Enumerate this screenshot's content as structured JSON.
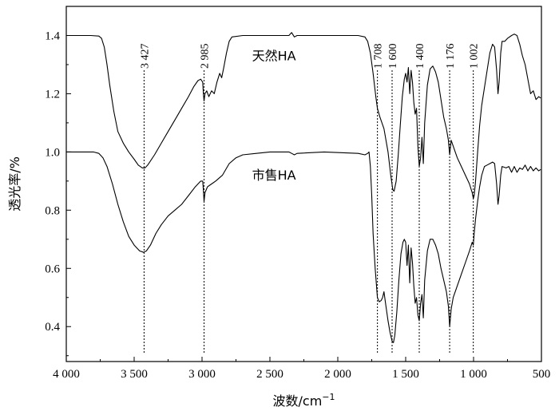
{
  "chart_data": {
    "type": "line",
    "xlabel": "波数/cm",
    "xlabel_sup": "−1",
    "ylabel": "透光率/%",
    "xlim": [
      4000,
      500
    ],
    "ylim": [
      0.28,
      1.5
    ],
    "x_reversed": true,
    "grid": false,
    "xticks": [
      {
        "value": 4000,
        "label": "4 000"
      },
      {
        "value": 3500,
        "label": "3 500"
      },
      {
        "value": 3000,
        "label": "3 000"
      },
      {
        "value": 2500,
        "label": "2 500"
      },
      {
        "value": 2000,
        "label": "2 000"
      },
      {
        "value": 1500,
        "label": "1 500"
      },
      {
        "value": 1000,
        "label": "1 000"
      },
      {
        "value": 500,
        "label": "500"
      }
    ],
    "yticks": [
      {
        "value": 0.4,
        "label": "0.4"
      },
      {
        "value": 0.6,
        "label": "0.6"
      },
      {
        "value": 0.8,
        "label": "0.8"
      },
      {
        "value": 1.0,
        "label": "1.0"
      },
      {
        "value": 1.2,
        "label": "1.2"
      },
      {
        "value": 1.4,
        "label": "1.4"
      }
    ],
    "peaks": [
      {
        "value": 3427,
        "label": "3 427"
      },
      {
        "value": 2985,
        "label": "2 985"
      },
      {
        "value": 1708,
        "label": "1 708"
      },
      {
        "value": 1600,
        "label": "1 600"
      },
      {
        "value": 1400,
        "label": "1 400"
      },
      {
        "value": 1176,
        "label": "1 176"
      },
      {
        "value": 1002,
        "label": "1 002"
      }
    ],
    "peak_line_bottom": 0.31,
    "series": [
      {
        "name": "天然HA",
        "label_at": {
          "x": 2470,
          "y": 1.315
        },
        "points": [
          [
            4000,
            1.4
          ],
          [
            3900,
            1.4
          ],
          [
            3820,
            1.4
          ],
          [
            3760,
            1.398
          ],
          [
            3740,
            1.39
          ],
          [
            3720,
            1.36
          ],
          [
            3700,
            1.3
          ],
          [
            3680,
            1.23
          ],
          [
            3650,
            1.14
          ],
          [
            3620,
            1.07
          ],
          [
            3580,
            1.03
          ],
          [
            3540,
            1.0
          ],
          [
            3500,
            0.975
          ],
          [
            3470,
            0.955
          ],
          [
            3440,
            0.945
          ],
          [
            3420,
            0.945
          ],
          [
            3400,
            0.955
          ],
          [
            3350,
            0.99
          ],
          [
            3300,
            1.03
          ],
          [
            3250,
            1.07
          ],
          [
            3200,
            1.11
          ],
          [
            3150,
            1.15
          ],
          [
            3100,
            1.19
          ],
          [
            3060,
            1.225
          ],
          [
            3030,
            1.245
          ],
          [
            3010,
            1.25
          ],
          [
            2995,
            1.24
          ],
          [
            2990,
            1.2
          ],
          [
            2985,
            1.175
          ],
          [
            2978,
            1.2
          ],
          [
            2965,
            1.21
          ],
          [
            2950,
            1.19
          ],
          [
            2930,
            1.21
          ],
          [
            2910,
            1.2
          ],
          [
            2890,
            1.24
          ],
          [
            2870,
            1.27
          ],
          [
            2855,
            1.255
          ],
          [
            2840,
            1.29
          ],
          [
            2820,
            1.34
          ],
          [
            2800,
            1.38
          ],
          [
            2780,
            1.395
          ],
          [
            2700,
            1.4
          ],
          [
            2500,
            1.4
          ],
          [
            2360,
            1.4
          ],
          [
            2340,
            1.41
          ],
          [
            2320,
            1.395
          ],
          [
            2300,
            1.4
          ],
          [
            2100,
            1.4
          ],
          [
            1850,
            1.4
          ],
          [
            1800,
            1.395
          ],
          [
            1780,
            1.38
          ],
          [
            1760,
            1.34
          ],
          [
            1740,
            1.27
          ],
          [
            1720,
            1.19
          ],
          [
            1708,
            1.15
          ],
          [
            1690,
            1.12
          ],
          [
            1660,
            1.08
          ],
          [
            1630,
            1.0
          ],
          [
            1610,
            0.92
          ],
          [
            1595,
            0.87
          ],
          [
            1585,
            0.865
          ],
          [
            1570,
            0.9
          ],
          [
            1555,
            0.99
          ],
          [
            1540,
            1.09
          ],
          [
            1525,
            1.19
          ],
          [
            1510,
            1.25
          ],
          [
            1500,
            1.27
          ],
          [
            1490,
            1.24
          ],
          [
            1480,
            1.29
          ],
          [
            1470,
            1.2
          ],
          [
            1460,
            1.28
          ],
          [
            1450,
            1.24
          ],
          [
            1440,
            1.17
          ],
          [
            1430,
            1.13
          ],
          [
            1420,
            1.15
          ],
          [
            1410,
            1.02
          ],
          [
            1400,
            0.95
          ],
          [
            1390,
            0.98
          ],
          [
            1380,
            1.05
          ],
          [
            1370,
            0.96
          ],
          [
            1360,
            1.1
          ],
          [
            1340,
            1.23
          ],
          [
            1320,
            1.285
          ],
          [
            1300,
            1.295
          ],
          [
            1280,
            1.275
          ],
          [
            1260,
            1.24
          ],
          [
            1240,
            1.18
          ],
          [
            1220,
            1.12
          ],
          [
            1200,
            1.08
          ],
          [
            1185,
            1.04
          ],
          [
            1176,
            0.99
          ],
          [
            1165,
            1.04
          ],
          [
            1150,
            1.02
          ],
          [
            1120,
            0.98
          ],
          [
            1090,
            0.95
          ],
          [
            1060,
            0.92
          ],
          [
            1030,
            0.89
          ],
          [
            1010,
            0.86
          ],
          [
            1002,
            0.84
          ],
          [
            995,
            0.85
          ],
          [
            985,
            0.9
          ],
          [
            970,
            1.0
          ],
          [
            955,
            1.09
          ],
          [
            940,
            1.16
          ],
          [
            920,
            1.22
          ],
          [
            900,
            1.28
          ],
          [
            880,
            1.34
          ],
          [
            860,
            1.37
          ],
          [
            845,
            1.36
          ],
          [
            830,
            1.28
          ],
          [
            820,
            1.2
          ],
          [
            812,
            1.24
          ],
          [
            800,
            1.34
          ],
          [
            790,
            1.38
          ],
          [
            770,
            1.38
          ],
          [
            750,
            1.39
          ],
          [
            720,
            1.4
          ],
          [
            700,
            1.405
          ],
          [
            680,
            1.4
          ],
          [
            660,
            1.37
          ],
          [
            640,
            1.33
          ],
          [
            620,
            1.3
          ],
          [
            600,
            1.25
          ],
          [
            580,
            1.2
          ],
          [
            560,
            1.21
          ],
          [
            540,
            1.18
          ],
          [
            520,
            1.19
          ],
          [
            505,
            1.185
          ]
        ]
      },
      {
        "name": "市售HA",
        "label_at": {
          "x": 2470,
          "y": 0.905
        },
        "points": [
          [
            4000,
            1.0
          ],
          [
            3900,
            1.0
          ],
          [
            3800,
            1.0
          ],
          [
            3760,
            0.995
          ],
          [
            3730,
            0.98
          ],
          [
            3700,
            0.95
          ],
          [
            3660,
            0.89
          ],
          [
            3620,
            0.82
          ],
          [
            3580,
            0.76
          ],
          [
            3540,
            0.71
          ],
          [
            3500,
            0.68
          ],
          [
            3460,
            0.66
          ],
          [
            3430,
            0.655
          ],
          [
            3410,
            0.66
          ],
          [
            3380,
            0.68
          ],
          [
            3340,
            0.72
          ],
          [
            3300,
            0.75
          ],
          [
            3250,
            0.78
          ],
          [
            3200,
            0.8
          ],
          [
            3150,
            0.82
          ],
          [
            3100,
            0.85
          ],
          [
            3050,
            0.88
          ],
          [
            3010,
            0.9
          ],
          [
            2995,
            0.9
          ],
          [
            2990,
            0.87
          ],
          [
            2985,
            0.83
          ],
          [
            2978,
            0.86
          ],
          [
            2960,
            0.88
          ],
          [
            2930,
            0.89
          ],
          [
            2900,
            0.9
          ],
          [
            2850,
            0.92
          ],
          [
            2800,
            0.96
          ],
          [
            2750,
            0.98
          ],
          [
            2700,
            0.99
          ],
          [
            2600,
            0.995
          ],
          [
            2500,
            1.0
          ],
          [
            2360,
            1.0
          ],
          [
            2340,
            0.995
          ],
          [
            2320,
            0.99
          ],
          [
            2300,
            0.995
          ],
          [
            2100,
            1.0
          ],
          [
            1850,
            0.995
          ],
          [
            1800,
            0.99
          ],
          [
            1780,
            0.995
          ],
          [
            1770,
            1.0
          ],
          [
            1760,
            0.95
          ],
          [
            1750,
            0.85
          ],
          [
            1740,
            0.72
          ],
          [
            1725,
            0.6
          ],
          [
            1708,
            0.5
          ],
          [
            1695,
            0.485
          ],
          [
            1680,
            0.49
          ],
          [
            1670,
            0.5
          ],
          [
            1660,
            0.52
          ],
          [
            1645,
            0.47
          ],
          [
            1630,
            0.42
          ],
          [
            1615,
            0.38
          ],
          [
            1600,
            0.35
          ],
          [
            1590,
            0.345
          ],
          [
            1580,
            0.37
          ],
          [
            1565,
            0.45
          ],
          [
            1550,
            0.56
          ],
          [
            1535,
            0.65
          ],
          [
            1520,
            0.69
          ],
          [
            1510,
            0.7
          ],
          [
            1500,
            0.69
          ],
          [
            1490,
            0.61
          ],
          [
            1480,
            0.68
          ],
          [
            1470,
            0.55
          ],
          [
            1460,
            0.67
          ],
          [
            1450,
            0.62
          ],
          [
            1440,
            0.54
          ],
          [
            1430,
            0.48
          ],
          [
            1420,
            0.5
          ],
          [
            1410,
            0.44
          ],
          [
            1400,
            0.42
          ],
          [
            1390,
            0.48
          ],
          [
            1380,
            0.51
          ],
          [
            1370,
            0.43
          ],
          [
            1360,
            0.56
          ],
          [
            1340,
            0.66
          ],
          [
            1320,
            0.7
          ],
          [
            1300,
            0.7
          ],
          [
            1280,
            0.68
          ],
          [
            1260,
            0.65
          ],
          [
            1240,
            0.6
          ],
          [
            1220,
            0.56
          ],
          [
            1200,
            0.52
          ],
          [
            1185,
            0.47
          ],
          [
            1176,
            0.4
          ],
          [
            1165,
            0.46
          ],
          [
            1150,
            0.5
          ],
          [
            1120,
            0.54
          ],
          [
            1090,
            0.58
          ],
          [
            1060,
            0.62
          ],
          [
            1030,
            0.66
          ],
          [
            1010,
            0.69
          ],
          [
            1002,
            0.68
          ],
          [
            995,
            0.72
          ],
          [
            985,
            0.77
          ],
          [
            970,
            0.83
          ],
          [
            955,
            0.88
          ],
          [
            940,
            0.92
          ],
          [
            920,
            0.95
          ],
          [
            900,
            0.955
          ],
          [
            880,
            0.96
          ],
          [
            860,
            0.965
          ],
          [
            845,
            0.96
          ],
          [
            830,
            0.89
          ],
          [
            820,
            0.82
          ],
          [
            812,
            0.85
          ],
          [
            800,
            0.92
          ],
          [
            790,
            0.95
          ],
          [
            760,
            0.945
          ],
          [
            740,
            0.95
          ],
          [
            720,
            0.93
          ],
          [
            700,
            0.95
          ],
          [
            680,
            0.93
          ],
          [
            660,
            0.945
          ],
          [
            640,
            0.94
          ],
          [
            620,
            0.955
          ],
          [
            600,
            0.935
          ],
          [
            580,
            0.95
          ],
          [
            560,
            0.935
          ],
          [
            540,
            0.945
          ],
          [
            520,
            0.935
          ],
          [
            505,
            0.94
          ]
        ]
      }
    ]
  }
}
